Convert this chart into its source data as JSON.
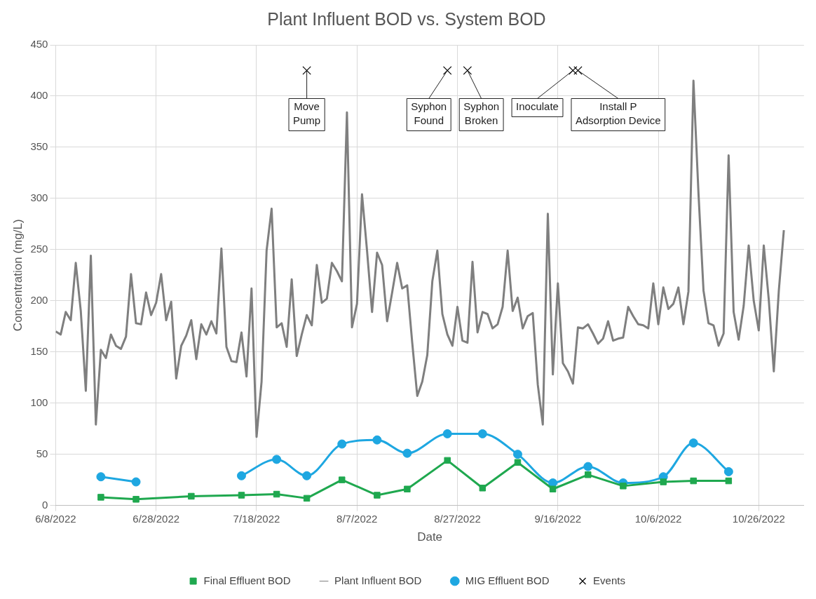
{
  "chart_data": {
    "type": "line",
    "title": "Plant Influent BOD vs. System BOD",
    "xlabel": "Date",
    "ylabel": "Concentration (mg/L)",
    "xlim": [
      "2022-06-08",
      "2022-11-04"
    ],
    "xticks": [
      {
        "value": "2022-06-08",
        "label": "6/8/2022"
      },
      {
        "value": "2022-06-28",
        "label": "6/28/2022"
      },
      {
        "value": "2022-07-18",
        "label": "7/18/2022"
      },
      {
        "value": "2022-08-07",
        "label": "8/7/2022"
      },
      {
        "value": "2022-08-27",
        "label": "8/27/2022"
      },
      {
        "value": "2022-09-16",
        "label": "9/16/2022"
      },
      {
        "value": "2022-10-06",
        "label": "10/6/2022"
      },
      {
        "value": "2022-10-26",
        "label": "10/26/2022"
      }
    ],
    "ylim": [
      0,
      450
    ],
    "yticks": [
      0,
      50,
      100,
      150,
      200,
      250,
      300,
      350,
      400,
      450
    ],
    "grid": true,
    "legend": "bottom",
    "series": [
      {
        "name": "Final Effluent BOD",
        "color": "#1fa84f",
        "marker": "square",
        "x": [
          "2022-06-17",
          "2022-06-24",
          "2022-07-05",
          "2022-07-15",
          "2022-07-22",
          "2022-07-28",
          "2022-08-04",
          "2022-08-11",
          "2022-08-17",
          "2022-08-25",
          "2022-09-01",
          "2022-09-08",
          "2022-09-15",
          "2022-09-22",
          "2022-09-29",
          "2022-10-07",
          "2022-10-13",
          "2022-10-20"
        ],
        "values": [
          8,
          6,
          9,
          10,
          11,
          7,
          25,
          10,
          16,
          44,
          17,
          42,
          16,
          30,
          19,
          23,
          24,
          24
        ]
      },
      {
        "name": "Plant Influent BOD",
        "color": "#7f7f7f",
        "marker": "none",
        "x": [
          "2022-06-08",
          "2022-06-09",
          "2022-06-10",
          "2022-06-11",
          "2022-06-12",
          "2022-06-13",
          "2022-06-14",
          "2022-06-15",
          "2022-06-16",
          "2022-06-17",
          "2022-06-18",
          "2022-06-19",
          "2022-06-20",
          "2022-06-21",
          "2022-06-22",
          "2022-06-23",
          "2022-06-24",
          "2022-06-25",
          "2022-06-26",
          "2022-06-27",
          "2022-06-28",
          "2022-06-29",
          "2022-06-30",
          "2022-07-01",
          "2022-07-02",
          "2022-07-03",
          "2022-07-04",
          "2022-07-05",
          "2022-07-06",
          "2022-07-07",
          "2022-07-08",
          "2022-07-09",
          "2022-07-10",
          "2022-07-11",
          "2022-07-12",
          "2022-07-13",
          "2022-07-14",
          "2022-07-15",
          "2022-07-16",
          "2022-07-17",
          "2022-07-18",
          "2022-07-19",
          "2022-07-20",
          "2022-07-21",
          "2022-07-22",
          "2022-07-23",
          "2022-07-24",
          "2022-07-25",
          "2022-07-26",
          "2022-07-27",
          "2022-07-28",
          "2022-07-29",
          "2022-07-30",
          "2022-07-31",
          "2022-08-01",
          "2022-08-02",
          "2022-08-03",
          "2022-08-04",
          "2022-08-05",
          "2022-08-06",
          "2022-08-07",
          "2022-08-08",
          "2022-08-09",
          "2022-08-10",
          "2022-08-11",
          "2022-08-12",
          "2022-08-13",
          "2022-08-14",
          "2022-08-15",
          "2022-08-16",
          "2022-08-17",
          "2022-08-18",
          "2022-08-19",
          "2022-08-20",
          "2022-08-21",
          "2022-08-22",
          "2022-08-23",
          "2022-08-24",
          "2022-08-25",
          "2022-08-26",
          "2022-08-27",
          "2022-08-28",
          "2022-08-29",
          "2022-08-30",
          "2022-08-31",
          "2022-09-01",
          "2022-09-02",
          "2022-09-03",
          "2022-09-04",
          "2022-09-05",
          "2022-09-06",
          "2022-09-07",
          "2022-09-08",
          "2022-09-09",
          "2022-09-10",
          "2022-09-11",
          "2022-09-12",
          "2022-09-13",
          "2022-09-14",
          "2022-09-15",
          "2022-09-16",
          "2022-09-17",
          "2022-09-18",
          "2022-09-19",
          "2022-09-20",
          "2022-09-21",
          "2022-09-22",
          "2022-09-23",
          "2022-09-24",
          "2022-09-25",
          "2022-09-26",
          "2022-09-27",
          "2022-09-28",
          "2022-09-29",
          "2022-09-30",
          "2022-10-01",
          "2022-10-02",
          "2022-10-03",
          "2022-10-04",
          "2022-10-05",
          "2022-10-06",
          "2022-10-07",
          "2022-10-08",
          "2022-10-09",
          "2022-10-10",
          "2022-10-11",
          "2022-10-12",
          "2022-10-13",
          "2022-10-14",
          "2022-10-15",
          "2022-10-16",
          "2022-10-17",
          "2022-10-18",
          "2022-10-19",
          "2022-10-20",
          "2022-10-21",
          "2022-10-22",
          "2022-10-23",
          "2022-10-24",
          "2022-10-25",
          "2022-10-26",
          "2022-10-27",
          "2022-10-28",
          "2022-10-29",
          "2022-10-30",
          "2022-10-31"
        ],
        "values": [
          170,
          167,
          189,
          181,
          237,
          190,
          112,
          244,
          79,
          152,
          144,
          167,
          156,
          153,
          165,
          226,
          178,
          177,
          208,
          186,
          198,
          226,
          181,
          199,
          124,
          156,
          166,
          181,
          143,
          177,
          167,
          180,
          168,
          251,
          155,
          141,
          140,
          169,
          126,
          212,
          67,
          121,
          249,
          290,
          174,
          178,
          155,
          221,
          146,
          167,
          186,
          176,
          235,
          198,
          202,
          237,
          229,
          219,
          384,
          174,
          197,
          304,
          249,
          189,
          247,
          235,
          180,
          208,
          237,
          212,
          215,
          159,
          107,
          121,
          147,
          219,
          249,
          187,
          167,
          156,
          194,
          161,
          159,
          238,
          169,
          189,
          187,
          173,
          177,
          194,
          249,
          190,
          203,
          173,
          185,
          188,
          118,
          79,
          285,
          128,
          217,
          139,
          131,
          119,
          174,
          173,
          177,
          168,
          158,
          163,
          180,
          161,
          163,
          164,
          194,
          185,
          177,
          176,
          173,
          217,
          177,
          213,
          192,
          197,
          213,
          177,
          209,
          415,
          305,
          210,
          178,
          176,
          156,
          168,
          342,
          189,
          162,
          195,
          254,
          200,
          171,
          254,
          201,
          131,
          210,
          269
        ]
      },
      {
        "name": "MIG Effluent BOD",
        "color": "#1ea7e1",
        "marker": "circle",
        "x": [
          "2022-06-17",
          "2022-06-24",
          "2022-07-05",
          "2022-07-15",
          "2022-07-22",
          "2022-07-28",
          "2022-08-04",
          "2022-08-11",
          "2022-08-17",
          "2022-08-25",
          "2022-09-01",
          "2022-09-08",
          "2022-09-15",
          "2022-09-22",
          "2022-09-29",
          "2022-10-07",
          "2022-10-13",
          "2022-10-20"
        ],
        "values": [
          28,
          23,
          null,
          29,
          45,
          29,
          60,
          64,
          51,
          70,
          70,
          50,
          22,
          38,
          22,
          28,
          61,
          33
        ]
      },
      {
        "name": "Events",
        "type": "scatter",
        "color": "#000000",
        "marker": "cross",
        "x": [
          "2022-07-28",
          "2022-08-25",
          "2022-08-29",
          "2022-09-19",
          "2022-09-20"
        ],
        "values": [
          425,
          425,
          425,
          425,
          425
        ]
      }
    ],
    "annotations": [
      {
        "text": "Move\nPump",
        "x": "2022-07-28",
        "y": 425
      },
      {
        "text": "Syphon\nFound",
        "x": "2022-08-25",
        "y": 425
      },
      {
        "text": "Syphon\nBroken",
        "x": "2022-08-29",
        "y": 425
      },
      {
        "text": "Inoculate",
        "x": "2022-09-19",
        "y": 425
      },
      {
        "text": "Install P\nAdsorption Device",
        "x": "2022-09-20",
        "y": 425
      }
    ]
  }
}
